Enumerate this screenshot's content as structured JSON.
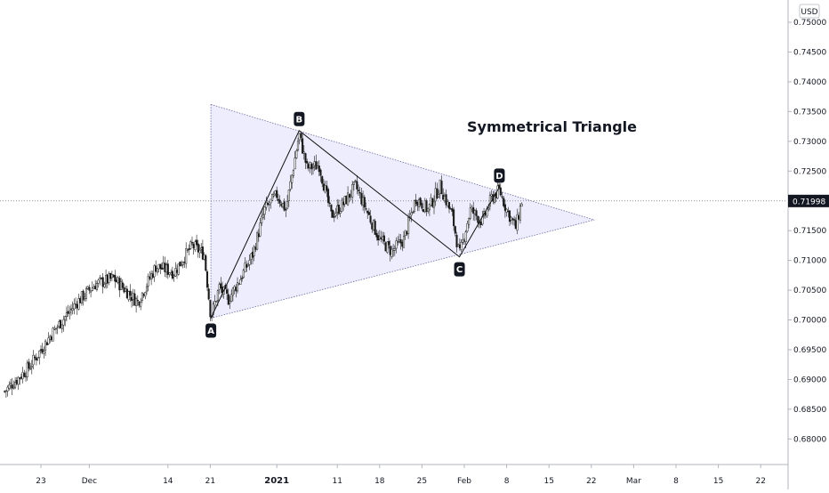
{
  "chart_data": {
    "type": "candlestick",
    "title": "Symmetrical Triangle",
    "currency_label": "USD",
    "current_price": "0.71998",
    "ylim": [
      0.6755,
      0.7555
    ],
    "y_ticks": [
      "0.75000",
      "0.74500",
      "0.74000",
      "0.73500",
      "0.73000",
      "0.72500",
      "0.72000",
      "0.71500",
      "0.71000",
      "0.70500",
      "0.70000",
      "0.69500",
      "0.69000",
      "0.68500",
      "0.68000"
    ],
    "x_ticks": [
      {
        "label": "23",
        "day": 0
      },
      {
        "label": "Dec",
        "day": 8
      },
      {
        "label": "14",
        "day": 21
      },
      {
        "label": "21",
        "day": 28
      },
      {
        "label": "2021",
        "day": 39,
        "bold": true
      },
      {
        "label": "11",
        "day": 49
      },
      {
        "label": "18",
        "day": 56
      },
      {
        "label": "25",
        "day": 63
      },
      {
        "label": "Feb",
        "day": 70
      },
      {
        "label": "8",
        "day": 77
      },
      {
        "label": "15",
        "day": 84
      },
      {
        "label": "22",
        "day": 91
      },
      {
        "label": "Mar",
        "day": 98
      },
      {
        "label": "8",
        "day": 105
      },
      {
        "label": "15",
        "day": 112
      },
      {
        "label": "22",
        "day": 119
      }
    ],
    "points": [
      {
        "label": "A",
        "day": 28.1,
        "price": 0.7003,
        "pos": "below"
      },
      {
        "label": "B",
        "day": 42.7,
        "price": 0.7318,
        "pos": "above"
      },
      {
        "label": "C",
        "day": 69.2,
        "price": 0.7106,
        "pos": "below"
      },
      {
        "label": "D",
        "day": 75.8,
        "price": 0.7223,
        "pos": "above"
      }
    ],
    "triangle": {
      "upper_start": {
        "day": 28.1,
        "price": 0.7362
      },
      "lower_start": {
        "day": 28.1,
        "price": 0.7003
      },
      "apex": {
        "day": 91.5,
        "price": 0.7168
      }
    },
    "price_path": [
      {
        "day": -6,
        "price": 0.688
      },
      {
        "day": -2,
        "price": 0.692
      },
      {
        "day": 2,
        "price": 0.698
      },
      {
        "day": 6,
        "price": 0.703
      },
      {
        "day": 9,
        "price": 0.706
      },
      {
        "day": 12,
        "price": 0.707
      },
      {
        "day": 14,
        "price": 0.705
      },
      {
        "day": 16,
        "price": 0.703
      },
      {
        "day": 19,
        "price": 0.709
      },
      {
        "day": 22,
        "price": 0.708
      },
      {
        "day": 25,
        "price": 0.7125
      },
      {
        "day": 27,
        "price": 0.711
      },
      {
        "day": 28.1,
        "price": 0.7005
      },
      {
        "day": 29.5,
        "price": 0.7055
      },
      {
        "day": 31,
        "price": 0.7035
      },
      {
        "day": 33,
        "price": 0.707
      },
      {
        "day": 35,
        "price": 0.711
      },
      {
        "day": 37,
        "price": 0.7185
      },
      {
        "day": 39,
        "price": 0.721
      },
      {
        "day": 40.5,
        "price": 0.7185
      },
      {
        "day": 42.7,
        "price": 0.7312
      },
      {
        "day": 44,
        "price": 0.7255
      },
      {
        "day": 46,
        "price": 0.726
      },
      {
        "day": 48,
        "price": 0.7175
      },
      {
        "day": 50,
        "price": 0.7195
      },
      {
        "day": 52,
        "price": 0.7225
      },
      {
        "day": 54,
        "price": 0.718
      },
      {
        "day": 56,
        "price": 0.7135
      },
      {
        "day": 58,
        "price": 0.7115
      },
      {
        "day": 60,
        "price": 0.7135
      },
      {
        "day": 62,
        "price": 0.7205
      },
      {
        "day": 64,
        "price": 0.7185
      },
      {
        "day": 66,
        "price": 0.7225
      },
      {
        "day": 68,
        "price": 0.7175
      },
      {
        "day": 69.2,
        "price": 0.7108
      },
      {
        "day": 71,
        "price": 0.7185
      },
      {
        "day": 73,
        "price": 0.7165
      },
      {
        "day": 74.5,
        "price": 0.7205
      },
      {
        "day": 75.8,
        "price": 0.7218
      },
      {
        "day": 77,
        "price": 0.7185
      },
      {
        "day": 78.5,
        "price": 0.7155
      },
      {
        "day": 79.5,
        "price": 0.7199
      }
    ]
  }
}
